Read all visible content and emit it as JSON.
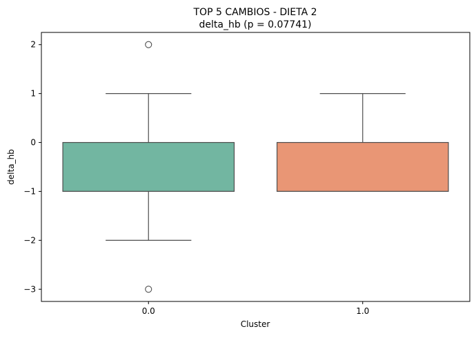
{
  "chart_data": {
    "type": "box",
    "title": "TOP 5 CAMBIOS - DIETA 2",
    "subtitle": "delta_hb (p = 0.07741)",
    "xlabel": "Cluster",
    "ylabel": "delta_hb",
    "categories": [
      "0.0",
      "1.0"
    ],
    "ylim": [
      -3.25,
      2.25
    ],
    "yticks": [
      2,
      1,
      0,
      -1,
      -2,
      -3
    ],
    "ytick_labels": [
      "2",
      "1",
      "0",
      "−1",
      "−2",
      "−3"
    ],
    "grid": false,
    "boxes": [
      {
        "category": "0.0",
        "whisker_low": -2,
        "q1": -1,
        "median": -1,
        "q3": 0,
        "whisker_high": 1,
        "outliers": [
          2,
          -3
        ],
        "color": "#72b6a1"
      },
      {
        "category": "1.0",
        "whisker_low": -1,
        "q1": -1,
        "median": -1,
        "q3": 0,
        "whisker_high": 1,
        "outliers": [],
        "color": "#e99675"
      }
    ]
  }
}
